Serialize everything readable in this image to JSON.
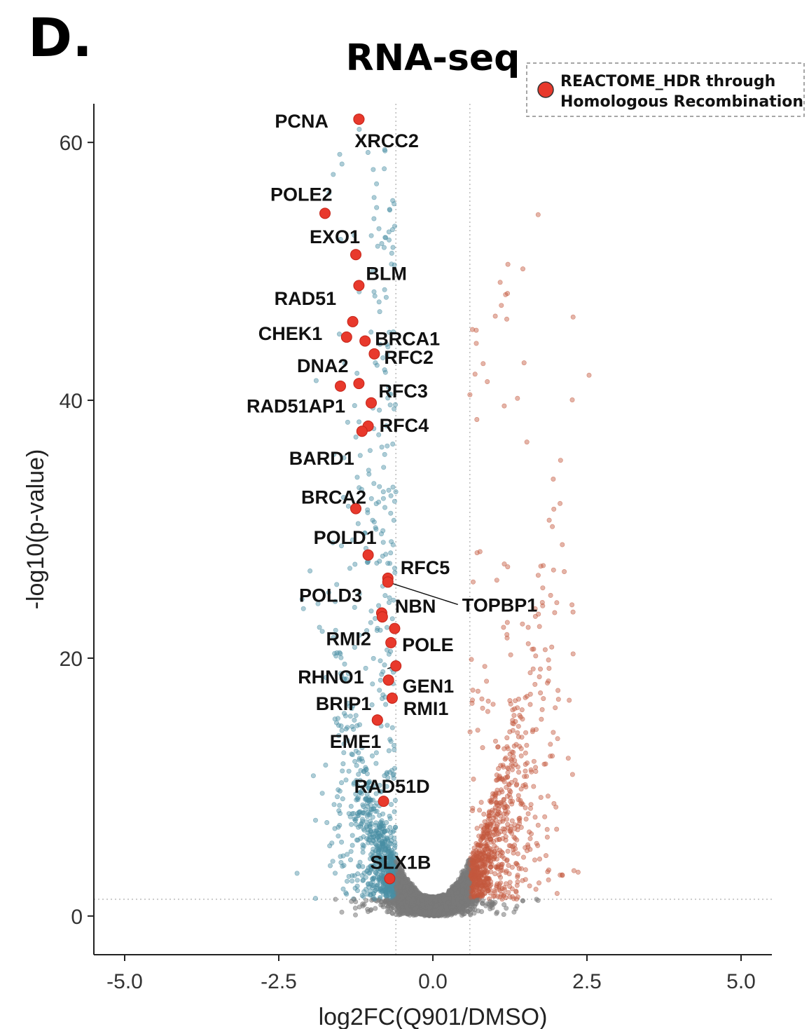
{
  "panel_letter": "D.",
  "chart_data": {
    "type": "scatter",
    "subtype": "volcano",
    "title": "RNA-seq",
    "xlabel": "log2FC(Q901/DMSO)",
    "ylabel": "-log10(p-value)",
    "xlim": [
      -5.5,
      5.5
    ],
    "ylim": [
      -3,
      63
    ],
    "xticks": [
      -5.0,
      -2.5,
      0.0,
      2.5,
      5.0
    ],
    "xtick_labels": [
      "-5.0",
      "-2.5",
      "0.0",
      "2.5",
      "5.0"
    ],
    "yticks": [
      0,
      20,
      40,
      60
    ],
    "ytick_labels": [
      "0",
      "20",
      "40",
      "60"
    ],
    "thresholds": {
      "log2fc": [
        -0.6,
        0.6
      ],
      "neg_log10_p": 1.3
    },
    "colors": {
      "down": "#4a8fa3",
      "up": "#c4593e",
      "ns": "#7a7a7a",
      "highlight": "#e8392c",
      "threshold_line": "#bbbbbb"
    },
    "legend": {
      "label": "REACTOME_HDR through Homologous Recombination",
      "lines": [
        "REACTOME_HDR through",
        "Homologous Recombination"
      ],
      "position": "top-right"
    },
    "highlighted_genes": [
      {
        "gene": "PCNA",
        "x": -1.2,
        "y": 61.8
      },
      {
        "gene": "XRCC2",
        "x": -1.2,
        "y": 61.8
      },
      {
        "gene": "POLE2",
        "x": -1.75,
        "y": 54.5
      },
      {
        "gene": "EXO1",
        "x": -1.25,
        "y": 51.3
      },
      {
        "gene": "BLM",
        "x": -1.2,
        "y": 48.9
      },
      {
        "gene": "RAD51",
        "x": -1.3,
        "y": 46.1
      },
      {
        "gene": "BRCA1",
        "x": -1.1,
        "y": 44.6
      },
      {
        "gene": "CHEK1",
        "x": -1.4,
        "y": 44.9
      },
      {
        "gene": "RFC2",
        "x": -0.95,
        "y": 43.6
      },
      {
        "gene": "DNA2",
        "x": -1.5,
        "y": 41.1
      },
      {
        "gene": "RFC3",
        "x": -1.2,
        "y": 41.3
      },
      {
        "gene": "RAD51AP1",
        "x": -1.0,
        "y": 39.8
      },
      {
        "gene": "RFC4",
        "x": -1.05,
        "y": 38.0
      },
      {
        "gene": "BARD1",
        "x": -1.15,
        "y": 37.6
      },
      {
        "gene": "BRCA2",
        "x": -1.25,
        "y": 31.6
      },
      {
        "gene": "POLD1",
        "x": -1.05,
        "y": 28.0
      },
      {
        "gene": "RFC5",
        "x": -0.73,
        "y": 26.2
      },
      {
        "gene": "TOPBP1",
        "x": -0.73,
        "y": 25.9
      },
      {
        "gene": "POLD3",
        "x": -0.83,
        "y": 23.5
      },
      {
        "gene": "NBN",
        "x": -0.82,
        "y": 23.2
      },
      {
        "gene": "RMI2",
        "x": -0.62,
        "y": 22.3
      },
      {
        "gene": "POLE",
        "x": -0.68,
        "y": 21.2
      },
      {
        "gene": "RHNO1",
        "x": -0.6,
        "y": 19.4
      },
      {
        "gene": "GEN1",
        "x": -0.72,
        "y": 18.3
      },
      {
        "gene": "RMI1",
        "x": -0.66,
        "y": 16.9
      },
      {
        "gene": "BRIP1",
        "x": -0.9,
        "y": 15.2
      },
      {
        "gene": "EME1",
        "x": -0.9,
        "y": 15.2
      },
      {
        "gene": "RAD51D",
        "x": -0.8,
        "y": 8.9
      },
      {
        "gene": "SLX1B",
        "x": -0.7,
        "y": 2.9
      }
    ]
  }
}
